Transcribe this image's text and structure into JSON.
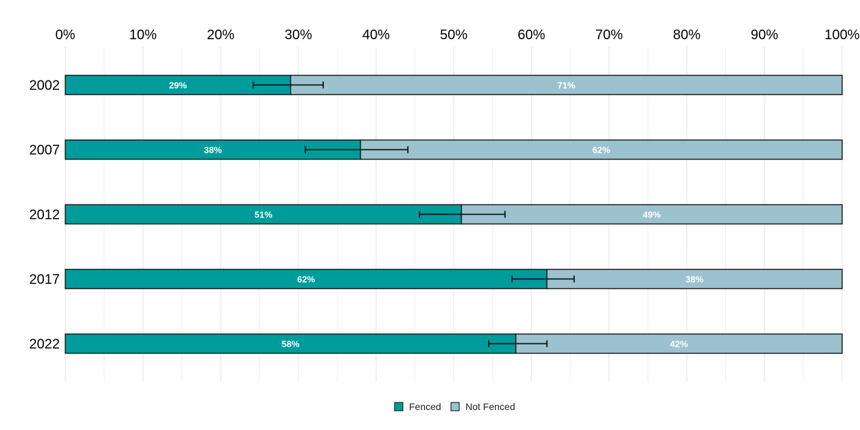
{
  "chart_data": {
    "type": "bar",
    "orientation": "horizontal",
    "stacked": true,
    "categories": [
      "2002",
      "2007",
      "2012",
      "2017",
      "2022"
    ],
    "series": [
      {
        "name": "Fenced",
        "values": [
          29,
          38,
          51,
          62,
          58
        ],
        "labels": [
          "29%",
          "38%",
          "51%",
          "62%",
          "58%"
        ],
        "color": "#009c9c"
      },
      {
        "name": "Not Fenced",
        "values": [
          71,
          62,
          49,
          38,
          42
        ],
        "labels": [
          "71%",
          "62%",
          "49%",
          "38%",
          "42%"
        ],
        "color": "#9cc2cf"
      }
    ],
    "error_bars": [
      {
        "low": 24.2,
        "high": 33.2
      },
      {
        "low": 30.9,
        "high": 44.1
      },
      {
        "low": 45.6,
        "high": 56.6
      },
      {
        "low": 57.5,
        "high": 65.5
      },
      {
        "low": 54.5,
        "high": 62.0
      }
    ],
    "x_ticks": [
      "0%",
      "10%",
      "20%",
      "30%",
      "40%",
      "50%",
      "60%",
      "70%",
      "80%",
      "90%",
      "100%"
    ],
    "xlim": [
      0,
      100
    ],
    "x_axis_position": "top",
    "grid": true,
    "legend_position": "bottom",
    "title": "",
    "xlabel": "",
    "ylabel": ""
  }
}
